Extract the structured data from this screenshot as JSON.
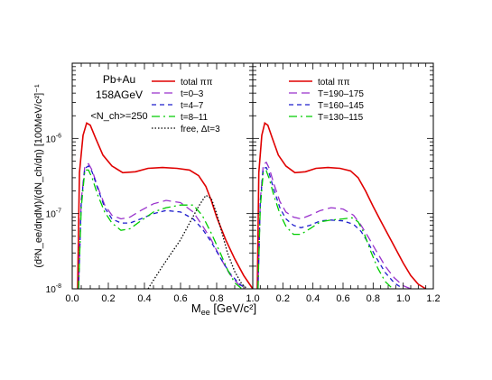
{
  "chart_data": [
    {
      "type": "line",
      "panel": "left",
      "y_scale": "log",
      "xlim": [
        0,
        1.0
      ],
      "ylim": [
        1e-08,
        1e-05
      ],
      "x_ticks": [
        0.0,
        0.2,
        0.4,
        0.6,
        0.8,
        1.0
      ],
      "x_tick_labels": [
        "0.0",
        "0.2",
        "0.4",
        "0.6",
        "0.8",
        "1.0"
      ],
      "y_ticks": [
        1e-08,
        1e-07,
        1e-06
      ],
      "y_tick_labels": [
        "10",
        "10",
        "10"
      ],
      "y_tick_exponents": [
        "-8",
        "-7",
        "-6"
      ],
      "ylabel": "(d²N_ee/dηdM)/(dN_ch/dη) [100MeV/c²]⁻¹",
      "annotations": [
        "Pb+Au",
        "158AGeV",
        "<N_ch>=250"
      ],
      "legend_position": "top-right",
      "series": [
        {
          "name": "total ππ",
          "color": "#e00000",
          "dash": "solid",
          "x": [
            0.03,
            0.04,
            0.06,
            0.08,
            0.1,
            0.13,
            0.17,
            0.22,
            0.28,
            0.35,
            0.42,
            0.5,
            0.58,
            0.65,
            0.7,
            0.74,
            0.77,
            0.8,
            0.85,
            0.9,
            0.95,
            1.0
          ],
          "y": [
            1e-08,
            3.5e-07,
            1.1e-06,
            1.6e-06,
            1.5e-06,
            1e-06,
            6e-07,
            4.3e-07,
            3.5e-07,
            3.6e-07,
            4e-07,
            4.1e-07,
            4e-07,
            3.8e-07,
            3.2e-07,
            2.3e-07,
            1.5e-07,
            9e-08,
            4.5e-08,
            2.5e-08,
            1.5e-08,
            1e-08
          ]
        },
        {
          "name": "t=0–3",
          "color": "#9932cc",
          "dash": "9 5",
          "x": [
            0.035,
            0.05,
            0.07,
            0.09,
            0.11,
            0.14,
            0.18,
            0.22,
            0.27,
            0.32,
            0.38,
            0.45,
            0.52,
            0.6,
            0.67,
            0.72,
            0.77,
            0.82,
            0.87,
            0.92,
            0.96
          ],
          "y": [
            1e-08,
            1.5e-07,
            4.3e-07,
            4.6e-07,
            3.8e-07,
            2.3e-07,
            1.3e-07,
            9.5e-08,
            8.5e-08,
            9e-08,
            1.1e-07,
            1.35e-07,
            1.5e-07,
            1.4e-07,
            1.05e-07,
            7e-08,
            4.5e-08,
            2.6e-08,
            1.6e-08,
            1.15e-08,
            1e-08
          ]
        },
        {
          "name": "t=4–7",
          "color": "#1e1ecc",
          "dash": "5 4",
          "x": [
            0.035,
            0.05,
            0.07,
            0.09,
            0.11,
            0.14,
            0.18,
            0.22,
            0.27,
            0.32,
            0.38,
            0.45,
            0.52,
            0.6,
            0.67,
            0.72,
            0.77,
            0.82,
            0.87,
            0.92,
            0.96
          ],
          "y": [
            1e-08,
            1.4e-07,
            4e-07,
            4.3e-07,
            3.6e-07,
            2.2e-07,
            1.2e-07,
            8.5e-08,
            7.5e-08,
            7.5e-08,
            8.5e-08,
            1e-07,
            1.1e-07,
            1.05e-07,
            8.5e-08,
            6.3e-08,
            4.2e-08,
            2.6e-08,
            1.65e-08,
            1.2e-08,
            1e-08
          ]
        },
        {
          "name": "t=8–11",
          "color": "#00cc00",
          "dash": "9 4 2 4",
          "x": [
            0.035,
            0.05,
            0.07,
            0.09,
            0.11,
            0.14,
            0.18,
            0.22,
            0.27,
            0.32,
            0.38,
            0.45,
            0.52,
            0.6,
            0.67,
            0.72,
            0.77,
            0.82,
            0.86,
            0.9,
            0.94
          ],
          "y": [
            1e-08,
            1.2e-07,
            3.8e-07,
            3.8e-07,
            3e-07,
            1.8e-07,
            1.05e-07,
            7.5e-08,
            6e-08,
            6.3e-08,
            8e-08,
            1.05e-07,
            1.2e-07,
            1.3e-07,
            1.3e-07,
            9.5e-08,
            5.5e-08,
            3e-08,
            1.8e-08,
            1.2e-08,
            1e-08
          ]
        },
        {
          "name": "free, Δt=3",
          "color": "#000000",
          "dash": "1.5 2",
          "x": [
            0.42,
            0.45,
            0.5,
            0.55,
            0.6,
            0.65,
            0.7,
            0.74,
            0.77,
            0.8,
            0.83,
            0.86,
            0.9,
            0.94,
            0.97
          ],
          "y": [
            1e-08,
            1.3e-08,
            2e-08,
            3e-08,
            4.5e-08,
            7.5e-08,
            1.25e-07,
            1.75e-07,
            1.6e-07,
            1e-07,
            5.5e-08,
            3e-08,
            1.7e-08,
            1.15e-08,
            1e-08
          ]
        }
      ]
    },
    {
      "type": "line",
      "panel": "right",
      "y_scale": "log",
      "xlim": [
        0,
        1.2
      ],
      "ylim": [
        1e-08,
        1e-05
      ],
      "x_ticks": [
        0.2,
        0.4,
        0.6,
        0.8,
        1.0,
        1.2
      ],
      "x_tick_labels": [
        "0.2",
        "0.4",
        "0.6",
        "0.8",
        "1.0",
        "1.2"
      ],
      "xlabel": "M",
      "xlabel_sub": "ee",
      "xlabel_unit": " [GeV/c²]",
      "legend_position": "top-right",
      "series": [
        {
          "name": "total ππ",
          "color": "#e00000",
          "dash": "solid",
          "x": [
            0.03,
            0.04,
            0.06,
            0.08,
            0.1,
            0.13,
            0.17,
            0.22,
            0.28,
            0.35,
            0.42,
            0.5,
            0.58,
            0.65,
            0.7,
            0.75,
            0.8,
            0.85,
            0.9,
            0.95,
            1.0,
            1.05,
            1.1,
            1.15
          ],
          "y": [
            1e-08,
            3.5e-07,
            1.1e-06,
            1.6e-06,
            1.5e-06,
            1e-06,
            6e-07,
            4.3e-07,
            3.5e-07,
            3.6e-07,
            4e-07,
            4.1e-07,
            4e-07,
            3.7e-07,
            3e-07,
            2e-07,
            1.25e-07,
            8e-08,
            5.2e-08,
            3.4e-08,
            2.2e-08,
            1.5e-08,
            1.15e-08,
            1e-08
          ]
        },
        {
          "name": "T=190–175",
          "color": "#9932cc",
          "dash": "9 5",
          "x": [
            0.035,
            0.05,
            0.07,
            0.09,
            0.11,
            0.14,
            0.18,
            0.22,
            0.27,
            0.32,
            0.38,
            0.45,
            0.52,
            0.6,
            0.67,
            0.72,
            0.77,
            0.82,
            0.88,
            0.94,
            1.0,
            1.05
          ],
          "y": [
            1e-08,
            1.5e-07,
            4.5e-07,
            4.8e-07,
            4e-07,
            2.5e-07,
            1.45e-07,
            1.05e-07,
            9e-08,
            8.5e-08,
            9.5e-08,
            1.1e-07,
            1.2e-07,
            1.15e-07,
            9.5e-08,
            7e-08,
            4.8e-08,
            3.2e-08,
            2e-08,
            1.4e-08,
            1.1e-08,
            1e-08
          ]
        },
        {
          "name": "T=160–145",
          "color": "#1e1ecc",
          "dash": "5 4",
          "x": [
            0.035,
            0.05,
            0.07,
            0.09,
            0.11,
            0.14,
            0.18,
            0.22,
            0.27,
            0.32,
            0.38,
            0.45,
            0.52,
            0.6,
            0.67,
            0.72,
            0.77,
            0.82,
            0.88,
            0.94,
            1.0
          ],
          "y": [
            1e-08,
            1.4e-07,
            4e-07,
            4.1e-07,
            3.4e-07,
            2.1e-07,
            1.2e-07,
            8.5e-08,
            7e-08,
            6.5e-08,
            7e-08,
            8e-08,
            8.2e-08,
            8e-08,
            7.2e-08,
            5.8e-08,
            4e-08,
            2.6e-08,
            1.65e-08,
            1.2e-08,
            1e-08
          ]
        },
        {
          "name": "T=130–115",
          "color": "#00cc00",
          "dash": "9 4 2 4",
          "x": [
            0.035,
            0.05,
            0.07,
            0.09,
            0.11,
            0.14,
            0.18,
            0.22,
            0.27,
            0.32,
            0.38,
            0.45,
            0.52,
            0.6,
            0.66,
            0.7,
            0.74,
            0.78,
            0.83,
            0.88,
            0.93
          ],
          "y": [
            1e-08,
            1.2e-07,
            3.6e-07,
            3.7e-07,
            2.9e-07,
            1.75e-07,
            1e-07,
            6.8e-08,
            5.3e-08,
            5.3e-08,
            6.3e-08,
            7.8e-08,
            8.2e-08,
            8.5e-08,
            8.8e-08,
            7.8e-08,
            5.5e-08,
            3.3e-08,
            1.9e-08,
            1.25e-08,
            1e-08
          ]
        }
      ]
    }
  ]
}
